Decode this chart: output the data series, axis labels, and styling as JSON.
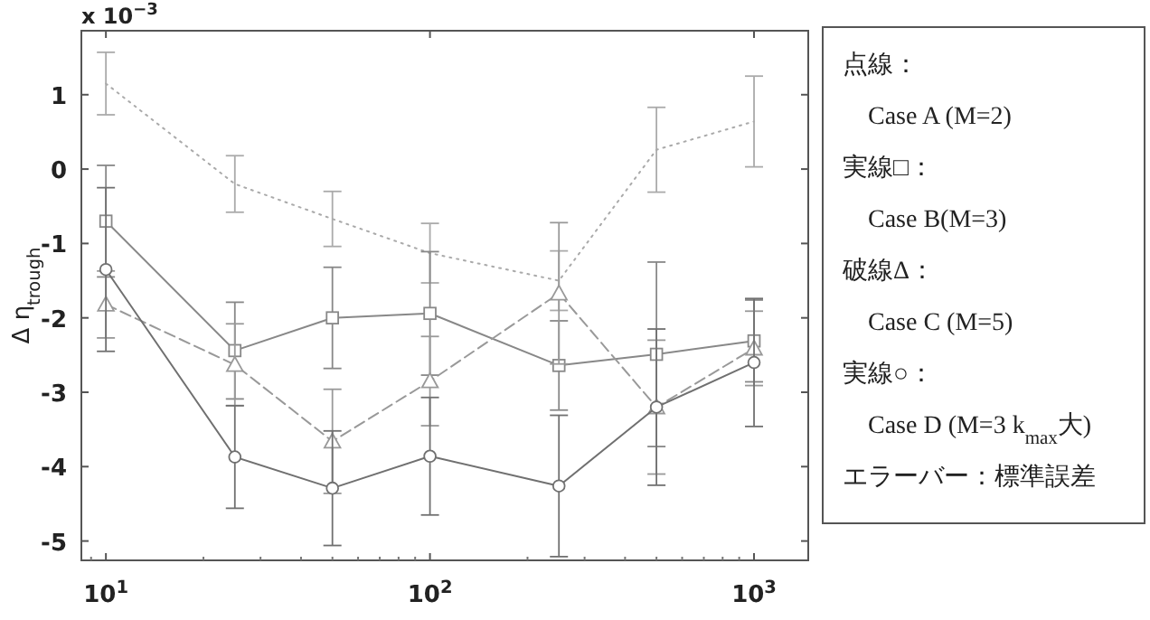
{
  "chart_data": {
    "type": "line",
    "title": "x 10$^{−3}$",
    "ylabel": "Δ η$_{trough}$",
    "log": "x",
    "grid": false,
    "x": [
      10,
      25,
      50,
      100,
      250,
      500,
      1000
    ],
    "xlim": [
      8.4,
      1470
    ],
    "xticks": [
      {
        "value": 10,
        "label": "10$^{1}$"
      },
      {
        "value": 100,
        "label": "10$^{2}$"
      },
      {
        "value": 1000,
        "label": "10$^{3}$"
      }
    ],
    "ylim": [
      -5.26,
      1.86
    ],
    "yticks": [
      {
        "value": 1,
        "label": "1"
      },
      {
        "value": 0,
        "label": "0"
      },
      {
        "value": -1,
        "label": "-1"
      },
      {
        "value": -2,
        "label": "-2"
      },
      {
        "value": -3,
        "label": "-3"
      },
      {
        "value": -4,
        "label": "-4"
      },
      {
        "value": -5,
        "label": "-5"
      }
    ],
    "series": [
      {
        "color": "#aaaaaa",
        "line_style": "dotted",
        "marker": "none",
        "values": [
          1.15,
          -0.2,
          -0.67,
          -1.13,
          -1.5,
          0.26,
          0.64
        ],
        "errors": [
          0.42,
          0.38,
          0.37,
          0.4,
          0.4,
          0.57,
          0.61
        ]
      },
      {
        "color": "#888888",
        "line_style": "solid",
        "marker": "square",
        "values": [
          -0.7,
          -2.44,
          -2.0,
          -1.94,
          -2.64,
          -2.49,
          -2.31
        ],
        "errors": [
          0.75,
          0.65,
          0.68,
          0.83,
          0.6,
          1.24,
          0.55
        ]
      },
      {
        "color": "#999999",
        "line_style": "dashed",
        "marker": "triangle",
        "values": [
          -1.82,
          -2.63,
          -3.66,
          -2.85,
          -1.67,
          -3.2,
          -2.41
        ],
        "errors": [
          0.45,
          0.55,
          0.7,
          0.6,
          0.95,
          0.9,
          0.5
        ]
      },
      {
        "color": "#707070",
        "line_style": "solid",
        "marker": "circle",
        "values": [
          -1.35,
          -3.87,
          -4.29,
          -3.86,
          -4.26,
          -3.2,
          -2.6
        ],
        "errors": [
          1.1,
          0.69,
          0.77,
          0.79,
          0.95,
          1.05,
          0.86
        ]
      }
    ],
    "annotations": [
      "点線：",
      "Case A (M=2)",
      "実線□：",
      "Case B(M=3)",
      "破線Δ：",
      "Case C (M=5)",
      "実線○：",
      "Case D (M=3  k$_{max}$大)",
      "エラーバー：標準誤差"
    ]
  }
}
